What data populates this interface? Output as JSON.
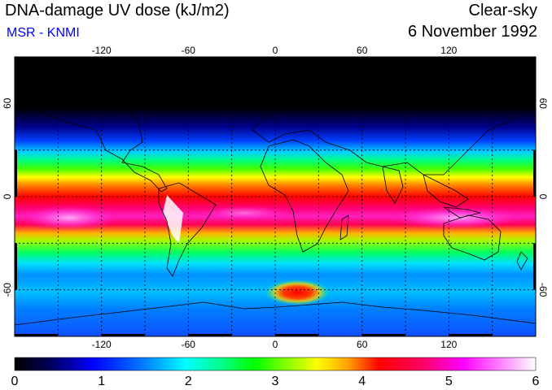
{
  "title": "DNA-damage UV dose (kJ/m2)",
  "subtitle": "MSR - KNMI",
  "condition": "Clear-sky",
  "date": "6 November 1992",
  "map": {
    "lon_ticks": [
      "-120",
      "-60",
      "0",
      "60",
      "120"
    ],
    "lon_values": [
      -120,
      -60,
      0,
      60,
      120
    ],
    "lat_ticks": [
      "60",
      "0",
      "-60"
    ],
    "lat_values": [
      60,
      0,
      -60
    ],
    "lon_range": [
      -180,
      180
    ],
    "lat_range": [
      -90,
      90
    ]
  },
  "colorbar": {
    "ticks": [
      "0",
      "1",
      "2",
      "3",
      "4",
      "5",
      "6"
    ],
    "range": [
      0,
      6
    ],
    "colors": [
      "#000000",
      "#000060",
      "#0000ff",
      "#0080ff",
      "#00ffff",
      "#00ff80",
      "#00ff00",
      "#80ff00",
      "#ffff00",
      "#ffa000",
      "#ff0000",
      "#ff0060",
      "#ff00ff",
      "#ff90ff",
      "#ffffff"
    ]
  }
}
